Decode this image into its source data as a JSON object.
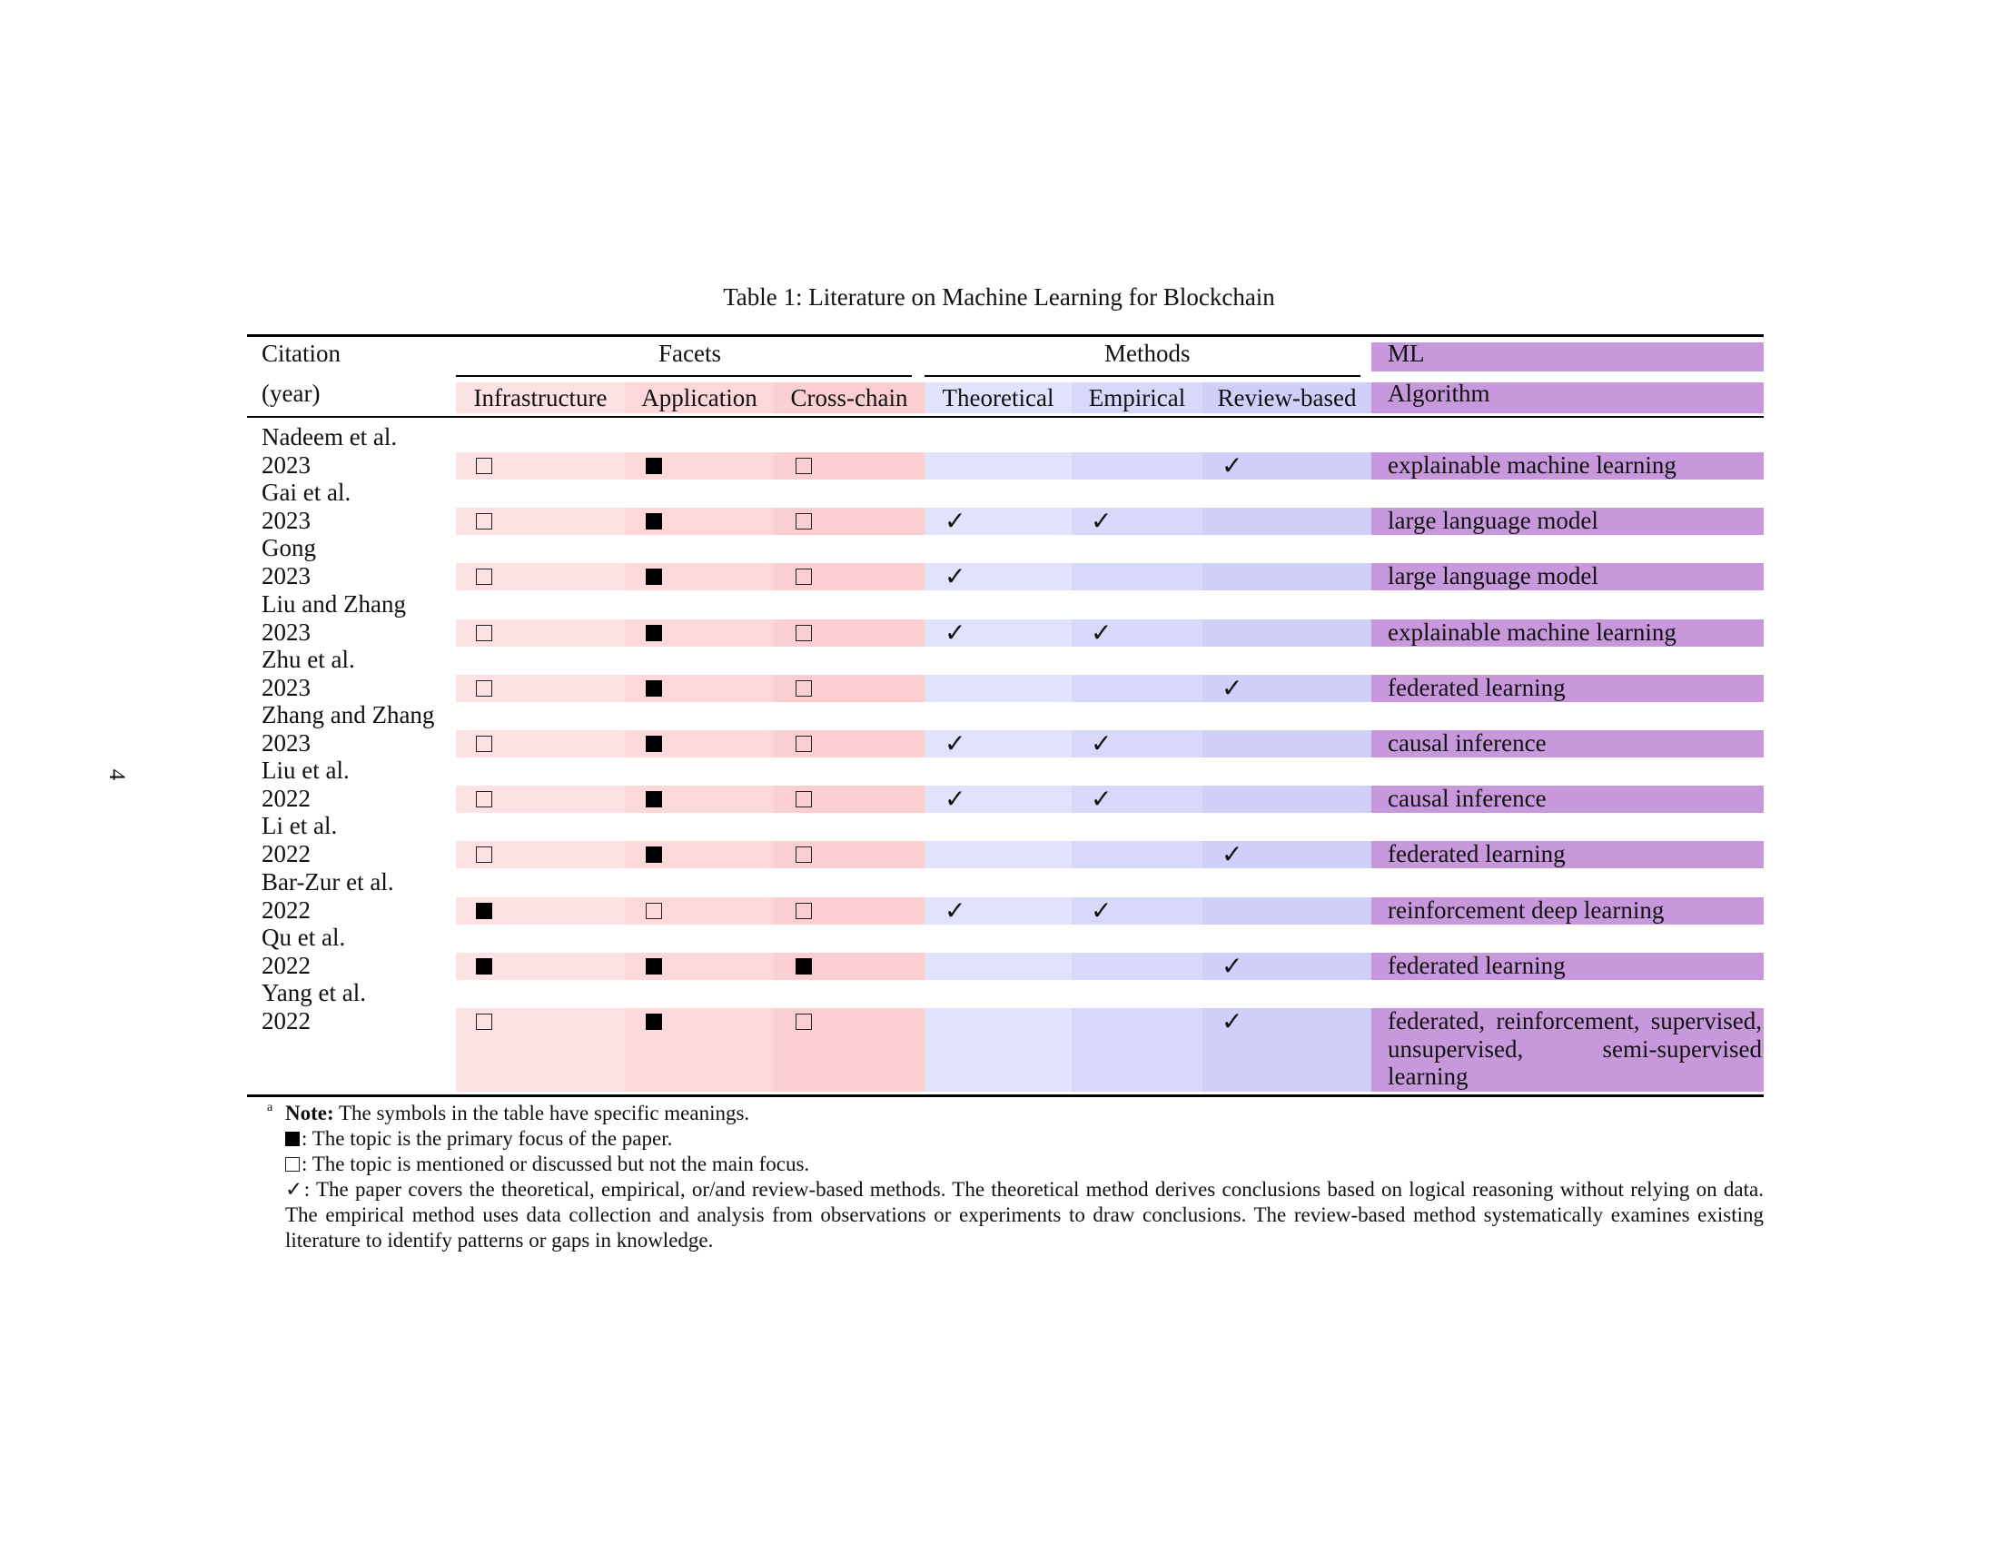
{
  "page_number": "4",
  "caption": "Table 1: Literature on Machine Learning for Blockchain",
  "header": {
    "citation_top": "Citation",
    "citation_bottom": "(year)",
    "facets_group": "Facets",
    "methods_group": "Methods",
    "ml_top": "ML",
    "ml_bottom": "Algorithm",
    "columns": [
      "Infrastructure",
      "Application",
      "Cross-chain",
      "Theoretical",
      "Empirical",
      "Review-based"
    ]
  },
  "symbols": {
    "primary": "■",
    "mentioned": "□",
    "check": "✓"
  },
  "rows": [
    {
      "name": "Nadeem et al.",
      "year": "2023",
      "infrastructure": "mentioned",
      "application": "primary",
      "cross_chain": "mentioned",
      "theoretical": false,
      "empirical": false,
      "review_based": true,
      "algorithm": "explainable machine learning"
    },
    {
      "name": "Gai et al.",
      "year": "2023",
      "infrastructure": "mentioned",
      "application": "primary",
      "cross_chain": "mentioned",
      "theoretical": true,
      "empirical": true,
      "review_based": false,
      "algorithm": "large language model"
    },
    {
      "name": "Gong",
      "year": "2023",
      "infrastructure": "mentioned",
      "application": "primary",
      "cross_chain": "mentioned",
      "theoretical": true,
      "empirical": false,
      "review_based": false,
      "algorithm": "large language model"
    },
    {
      "name": "Liu and Zhang",
      "year": "2023",
      "infrastructure": "mentioned",
      "application": "primary",
      "cross_chain": "mentioned",
      "theoretical": true,
      "empirical": true,
      "review_based": false,
      "algorithm": "explainable machine learning"
    },
    {
      "name": "Zhu et al.",
      "year": "2023",
      "infrastructure": "mentioned",
      "application": "primary",
      "cross_chain": "mentioned",
      "theoretical": false,
      "empirical": false,
      "review_based": true,
      "algorithm": "federated learning"
    },
    {
      "name": "Zhang and Zhang",
      "year": "2023",
      "infrastructure": "mentioned",
      "application": "primary",
      "cross_chain": "mentioned",
      "theoretical": true,
      "empirical": true,
      "review_based": false,
      "algorithm": "causal inference"
    },
    {
      "name": "Liu et al.",
      "year": "2022",
      "infrastructure": "mentioned",
      "application": "primary",
      "cross_chain": "mentioned",
      "theoretical": true,
      "empirical": true,
      "review_based": false,
      "algorithm": "causal inference"
    },
    {
      "name": "Li et al.",
      "year": "2022",
      "infrastructure": "mentioned",
      "application": "primary",
      "cross_chain": "mentioned",
      "theoretical": false,
      "empirical": false,
      "review_based": true,
      "algorithm": "federated learning"
    },
    {
      "name": "Bar-Zur et al.",
      "year": "2022",
      "infrastructure": "primary",
      "application": "mentioned",
      "cross_chain": "mentioned",
      "theoretical": true,
      "empirical": true,
      "review_based": false,
      "algorithm": "reinforcement deep learning"
    },
    {
      "name": "Qu et al.",
      "year": "2022",
      "infrastructure": "primary",
      "application": "primary",
      "cross_chain": "primary",
      "theoretical": false,
      "empirical": false,
      "review_based": true,
      "algorithm": "federated learning"
    },
    {
      "name": "Yang et al.",
      "year": "2022",
      "infrastructure": "mentioned",
      "application": "primary",
      "cross_chain": "mentioned",
      "theoretical": false,
      "empirical": false,
      "review_based": true,
      "algorithm": "federated, reinforcement, supervised, unsupervised, semi-supervised learning"
    }
  ],
  "notes": {
    "marker": "a",
    "note_label": "Note:",
    "note_text": " The symbols in the table have specific meanings.",
    "primary_text": ": The topic is the primary focus of the paper.",
    "mentioned_text": ": The topic is mentioned or discussed but not the main focus.",
    "check_text": ": The paper covers the theoretical, empirical, or/and review-based methods. The theoretical method derives conclusions based on logical reasoning without relying on data. The empirical method uses data collection and analysis from observations or experiments to draw conclusions. The review-based method systematically examines existing literature to identify patterns or gaps in knowledge."
  }
}
